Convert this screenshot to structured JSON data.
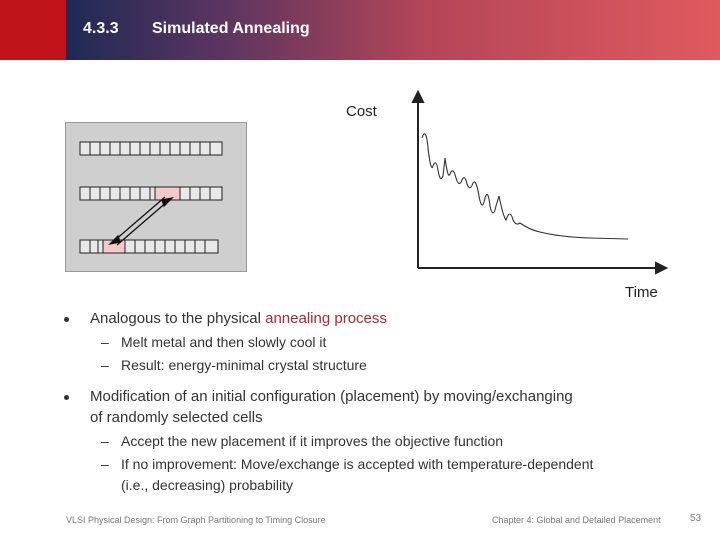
{
  "header": {
    "section_number": "4.3.3",
    "title": "Simulated Annealing"
  },
  "figure": {
    "cost_label": "Cost",
    "time_label": "Time"
  },
  "bullets": [
    {
      "pre": "Analogous to the physical ",
      "highlight": "annealing process",
      "post": "",
      "sub": [
        "Melt metal and then slowly cool it",
        "Result: energy-minimal crystal structure"
      ]
    },
    {
      "line1": "Modification of an initial configuration (placement) by moving/exchanging",
      "line2": "of randomly selected cells",
      "sub": [
        "Accept the new placement if it improves the objective function",
        "If no improvement: Move/exchange is accepted with temperature-dependent",
        "(i.e., decreasing) probability"
      ]
    }
  ],
  "footer": {
    "left": "VLSI Physical Design: From Graph Partitioning to Timing Closure",
    "right": "Chapter 4: Global and Detailed Placement",
    "page": "53"
  },
  "colors": {
    "accent": "#b0282c",
    "header_red": "#c0141a",
    "header_navy": "#1e2a55"
  }
}
